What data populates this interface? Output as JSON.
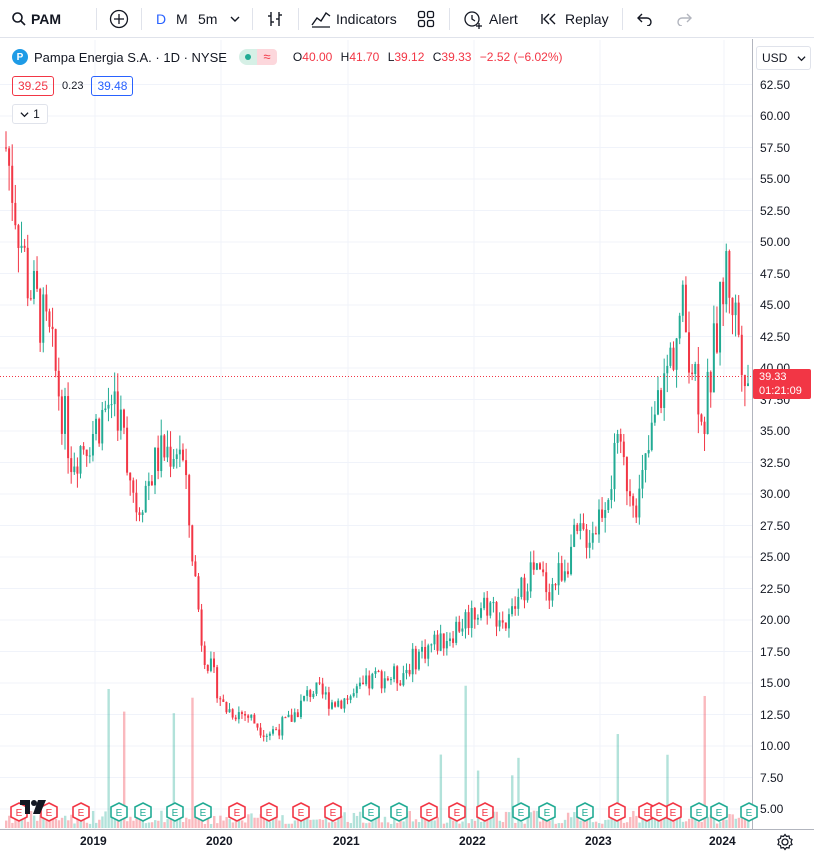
{
  "toolbar": {
    "symbol": "PAM",
    "interval_d": "D",
    "interval_m": "M",
    "interval_5m": "5m",
    "indicators_label": "Indicators",
    "alert_label": "Alert",
    "replay_label": "Replay",
    "icons": [
      "search-icon",
      "add-symbol-icon",
      "chevron-down-icon",
      "bar-style-icon",
      "indicators-icon",
      "templates-icon",
      "alert-icon",
      "replay-icon",
      "undo-icon",
      "redo-icon"
    ]
  },
  "legend": {
    "logo_letter": "P",
    "title": "Pampa Energia S.A. · 1D · NYSE",
    "open_key": "O",
    "open": "40.00",
    "high_key": "H",
    "high": "41.70",
    "low_key": "L",
    "low": "39.12",
    "close_key": "C",
    "close": "39.33",
    "change": "−2.52 (−6.02%)",
    "pill_symbol": "≈"
  },
  "bidask": {
    "bid": "39.25",
    "spread": "0.23",
    "ask": "39.48"
  },
  "collapse": {
    "count": "1"
  },
  "currency": "USD",
  "price_tag": {
    "price": "39.33",
    "countdown": "01:21:09"
  },
  "colors": {
    "up": "#22ab94",
    "down": "#f23645",
    "accent": "#2962ff",
    "grid": "#f0f3fa"
  },
  "chart_data": {
    "type": "candlestick",
    "title": "Pampa Energia S.A. · 1D · NYSE",
    "ylim": [
      3.5,
      64
    ],
    "y_ticks": [
      "62.50",
      "60.00",
      "57.50",
      "55.00",
      "52.50",
      "50.00",
      "47.50",
      "45.00",
      "42.50",
      "40.00",
      "37.50",
      "35.00",
      "32.50",
      "30.00",
      "27.50",
      "25.00",
      "22.50",
      "20.00",
      "17.50",
      "15.00",
      "12.50",
      "10.00",
      "7.50",
      "5.00"
    ],
    "x_ticks": [
      "2019",
      "2020",
      "2021",
      "2022",
      "2023",
      "2024"
    ],
    "last_price": 39.33,
    "earnings_markers": [
      "red",
      "red",
      "red",
      "green",
      "green",
      "green",
      "green",
      "red",
      "red",
      "red",
      "red",
      "green",
      "green",
      "red",
      "red",
      "red",
      "green",
      "green",
      "green",
      "red",
      "red",
      "red",
      "green",
      "green",
      "green",
      "red"
    ],
    "x": [
      "2018-07",
      "2018-09",
      "2018-11",
      "2019-01",
      "2019-03",
      "2019-05",
      "2019-07",
      "2019-09",
      "2019-11",
      "2020-01",
      "2020-03",
      "2020-05",
      "2020-07",
      "2020-09",
      "2020-11",
      "2021-01",
      "2021-03",
      "2021-05",
      "2021-07",
      "2021-09",
      "2021-11",
      "2022-01",
      "2022-03",
      "2022-05",
      "2022-07",
      "2022-09",
      "2022-11",
      "2023-01",
      "2023-03",
      "2023-05",
      "2023-07",
      "2023-09",
      "2023-11",
      "2024-01",
      "2024-03"
    ],
    "close": [
      57.5,
      47,
      42,
      33,
      35,
      38,
      29,
      33,
      34,
      18,
      13,
      12.5,
      11,
      12,
      14.5,
      13.5,
      14,
      15.5,
      15.5,
      17.5,
      18.5,
      20,
      21.5,
      19.5,
      24,
      22.5,
      26,
      27.5,
      33,
      29.5,
      38,
      44.5,
      36,
      48,
      39.33
    ]
  }
}
